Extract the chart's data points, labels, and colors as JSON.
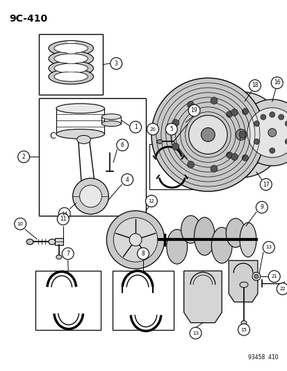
{
  "title": "9C-410",
  "footer": "93458  410",
  "bg": "#ffffff",
  "lc": "#000000",
  "fig_w": 4.14,
  "fig_h": 5.33,
  "dpi": 100
}
